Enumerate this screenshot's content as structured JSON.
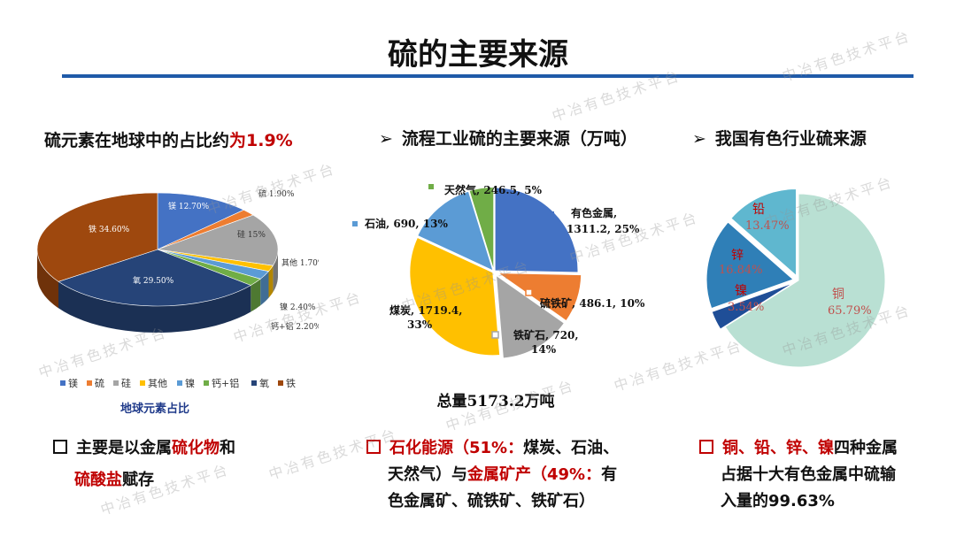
{
  "title": "硫的主要来源",
  "watermark": "中冶有色技术平台",
  "left": {
    "heading_a": "硫元素在地球中的占比约",
    "heading_b": "为1.9%",
    "note_line1_a": "主要是以金属",
    "note_line1_b": "硫化物",
    "note_line1_c": "和",
    "note_line2_a": "硫酸盐",
    "note_line2_b": "赋存"
  },
  "middle": {
    "heading": "流程工业硫的主要来源（万吨）",
    "total": "总量5173.2万吨",
    "note_line1_a": "石化能源",
    "note_line1_b": "（51%：",
    "note_line1_c": "煤炭、石油、",
    "note_line2_a": "天然气）与",
    "note_line2_b": "金属矿产",
    "note_line2_c": "（49%：",
    "note_line2_d": "有",
    "note_line3": "色金属矿、硫铁矿、铁矿石）"
  },
  "right": {
    "heading": "我国有色行业硫来源",
    "note_line1_a": "铜、铅、锌、镍",
    "note_line1_b": "四种金属",
    "note_line2": "占据十大有色金属中硫输",
    "note_line3": "入量的99.63%"
  },
  "arrow_glyph": "➢",
  "chart_data": [
    {
      "type": "pie",
      "title": "地球元素占比",
      "categories": [
        "镁",
        "硫",
        "硅",
        "其他",
        "镍",
        "钙+铝",
        "氧",
        "铁"
      ],
      "values": [
        12.7,
        1.9,
        15.0,
        1.7,
        2.4,
        2.2,
        29.5,
        34.6
      ],
      "labels": [
        "镁 12.70%",
        "硫 1.90%",
        "硅 15%",
        "其他 1.70%",
        "镍 2.40%",
        "钙+铝 2.20%",
        "氧 29.50%",
        "铁 34.60%"
      ],
      "colors": [
        "#4472c4",
        "#ed7d31",
        "#a5a5a5",
        "#ffc000",
        "#5b9bd5",
        "#70ad47",
        "#264478",
        "#9e480e"
      ],
      "legend": "bottom",
      "style": "3d"
    },
    {
      "type": "pie",
      "categories": [
        "有色金属",
        "硫铁矿",
        "铁矿石",
        "煤炭",
        "石油",
        "天然气"
      ],
      "values": [
        1311.2,
        486.1,
        720,
        1719.4,
        690,
        246.5
      ],
      "percent": [
        25,
        10,
        14,
        33,
        13,
        5
      ],
      "label_lines": [
        [
          "有色金属,",
          "1311.2, 25%"
        ],
        [
          "硫铁矿, 486.1, 10%"
        ],
        [
          "铁矿石, 720,",
          "14%"
        ],
        [
          "煤炭, 1719.4,",
          "33%"
        ],
        [
          "石油, 690, 13%"
        ],
        [
          "天然气, 246.5, 5%"
        ]
      ],
      "colors": [
        "#4472c4",
        "#ed7d31",
        "#a5a5a5",
        "#ffc000",
        "#5b9bd5",
        "#70ad47"
      ]
    },
    {
      "type": "pie",
      "categories": [
        "铜",
        "铅",
        "锌",
        "镍"
      ],
      "values": [
        65.79,
        13.47,
        16.84,
        3.54
      ],
      "labels": [
        "65.79%",
        "13.47%",
        "16.84%",
        "3.54%"
      ],
      "colors": [
        "#b9e0d3",
        "#5fb7cf",
        "#2f7fb7",
        "#1f4e97"
      ]
    }
  ]
}
